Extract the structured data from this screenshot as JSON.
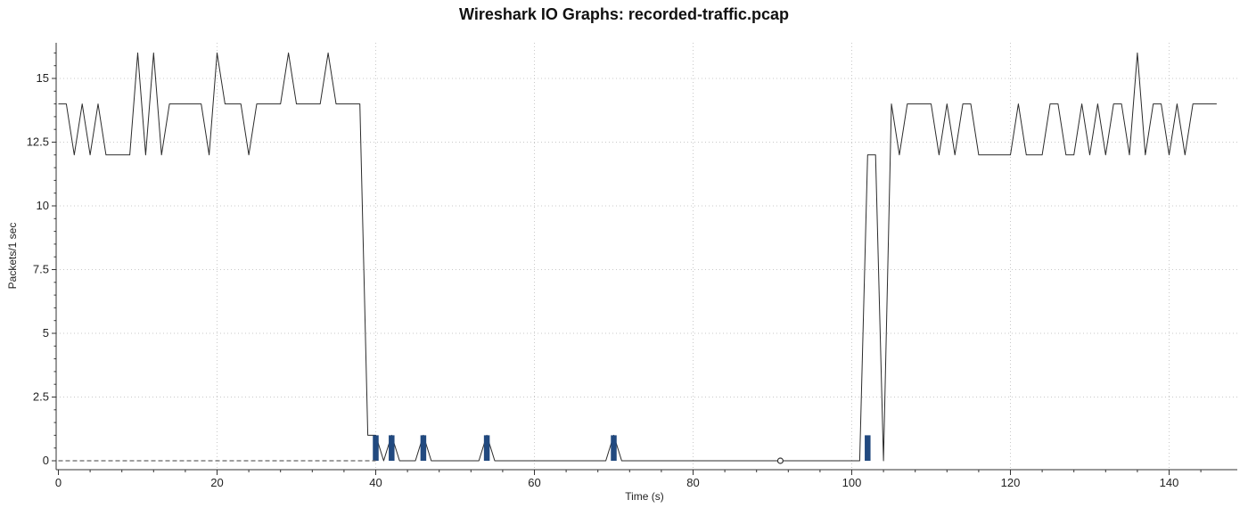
{
  "chart_data": {
    "type": "line",
    "title": "Wireshark IO Graphs: recorded-traffic.pcap",
    "xlabel": "Time (s)",
    "ylabel": "Packets/1 sec",
    "xlim": [
      0,
      148
    ],
    "ylim": [
      -0.4,
      16.2
    ],
    "x_ticks": [
      0,
      20,
      40,
      60,
      80,
      100,
      120,
      140
    ],
    "y_ticks": [
      0,
      2.5,
      5,
      7.5,
      10,
      12.5,
      15
    ],
    "y_tick_labels": [
      "0",
      "2.5",
      "5",
      "7.5",
      "10",
      "12.5",
      "15"
    ],
    "grid": true,
    "legend": "none",
    "colors": {
      "line": "#2b2b2b",
      "bars": "#21497f",
      "baseline": "#666666",
      "grid": "#c8c8c8"
    },
    "series": [
      {
        "type": "line",
        "x": [
          0,
          1,
          2,
          3,
          4,
          5,
          6,
          7,
          8,
          9,
          10,
          11,
          12,
          13,
          14,
          15,
          16,
          17,
          18,
          19,
          20,
          21,
          22,
          23,
          24,
          25,
          26,
          27,
          28,
          29,
          30,
          31,
          32,
          33,
          34,
          35,
          36,
          37,
          38,
          39,
          40,
          41,
          42,
          43,
          44,
          45,
          46,
          47,
          48,
          49,
          50,
          51,
          52,
          53,
          54,
          55,
          56,
          57,
          58,
          59,
          60,
          61,
          62,
          63,
          64,
          65,
          66,
          67,
          68,
          69,
          70,
          71,
          72,
          73,
          74,
          75,
          76,
          77,
          78,
          79,
          80,
          81,
          82,
          83,
          84,
          85,
          86,
          87,
          88,
          89,
          90,
          91,
          92,
          93,
          94,
          95,
          96,
          97,
          98,
          99,
          100,
          101,
          102,
          103,
          104,
          105,
          106,
          107,
          108,
          109,
          110,
          111,
          112,
          113,
          114,
          115,
          116,
          117,
          118,
          119,
          120,
          121,
          122,
          123,
          124,
          125,
          126,
          127,
          128,
          129,
          130,
          131,
          132,
          133,
          134,
          135,
          136,
          137,
          138,
          139,
          140,
          141,
          142,
          143,
          144,
          145,
          146
        ],
        "y": [
          14,
          14,
          12,
          14,
          12,
          14,
          12,
          12,
          12,
          12,
          16,
          12,
          16,
          12,
          14,
          14,
          14,
          14,
          14,
          12,
          16,
          14,
          14,
          14,
          12,
          14,
          14,
          14,
          14,
          16,
          14,
          14,
          14,
          14,
          16,
          14,
          14,
          14,
          14,
          1,
          1,
          0,
          1,
          0,
          0,
          0,
          1,
          0,
          0,
          0,
          0,
          0,
          0,
          0,
          1,
          0,
          0,
          0,
          0,
          0,
          0,
          0,
          0,
          0,
          0,
          0,
          0,
          0,
          0,
          0,
          1,
          0,
          0,
          0,
          0,
          0,
          0,
          0,
          0,
          0,
          0,
          0,
          0,
          0,
          0,
          0,
          0,
          0,
          0,
          0,
          0,
          0,
          0,
          0,
          0,
          0,
          0,
          0,
          0,
          0,
          0,
          0,
          12,
          12,
          0,
          14,
          12,
          14,
          14,
          14,
          14,
          12,
          14,
          12,
          14,
          14,
          12,
          12,
          12,
          12,
          12,
          14,
          12,
          12,
          12,
          14,
          14,
          12,
          12,
          14,
          12,
          14,
          12,
          14,
          14,
          12,
          16,
          12,
          14,
          14,
          12,
          14,
          12,
          14,
          14,
          14,
          14
        ]
      },
      {
        "type": "bar",
        "x": [
          40,
          42,
          46,
          54,
          70,
          102
        ],
        "values": [
          1,
          1,
          1,
          1,
          1,
          1
        ]
      },
      {
        "type": "line",
        "style": "dashed",
        "x": [
          0,
          40
        ],
        "y": [
          0,
          0
        ]
      },
      {
        "type": "scatter",
        "x": [
          91
        ],
        "y": [
          0
        ]
      }
    ]
  }
}
